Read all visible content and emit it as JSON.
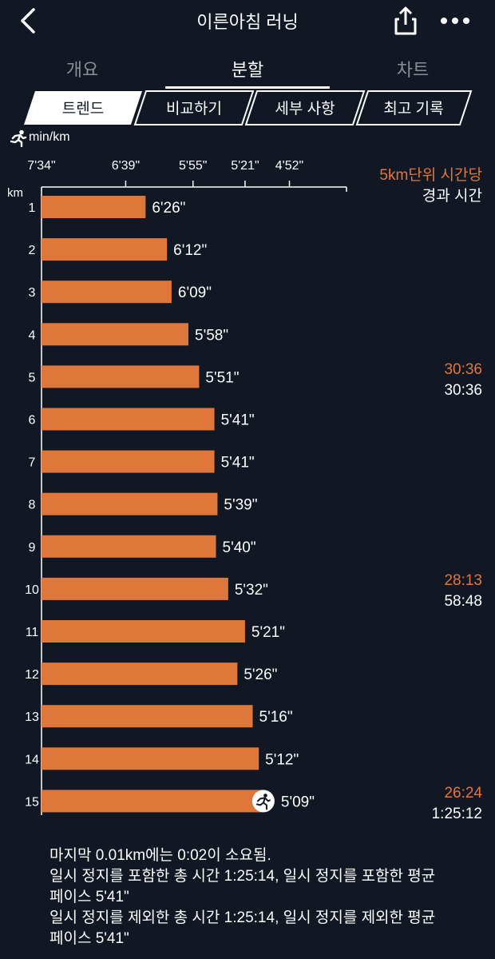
{
  "header": {
    "title": "이른아침 러닝",
    "back_icon": "chevron-left-icon",
    "share_icon": "share-icon",
    "more_icon": "more-horizontal-icon"
  },
  "tabs": [
    {
      "label": "개요",
      "active": false
    },
    {
      "label": "분할",
      "active": true
    },
    {
      "label": "차트",
      "active": false
    }
  ],
  "segments": [
    {
      "label": "트렌드",
      "active": true
    },
    {
      "label": "비교하기",
      "active": false
    },
    {
      "label": "세부 사항",
      "active": false
    },
    {
      "label": "최고 기록",
      "active": false
    }
  ],
  "unit_label": "min/km",
  "runner_icon": "runner-icon",
  "right_header": {
    "line1": "5km단위 시간당",
    "line2": "경과 시간"
  },
  "splits_5km": [
    {
      "km": 5,
      "split": "30:36",
      "elapsed": "30:36"
    },
    {
      "km": 10,
      "split": "28:13",
      "elapsed": "58:48"
    },
    {
      "km": 15,
      "split": "26:24",
      "elapsed": "1:25:12"
    }
  ],
  "colors": {
    "background": "#111723",
    "bar": "#e0773a",
    "accent": "#e3773a",
    "text": "#ffffff"
  },
  "chart_data": {
    "type": "bar",
    "orientation": "horizontal",
    "ylabel": "km",
    "xlabel": "min/km",
    "x_ticks": [
      "7'34\"",
      "6'39\"",
      "5'55\"",
      "5'21\"",
      "4'52\""
    ],
    "x_tick_paces": [
      7.5667,
      6.65,
      5.9167,
      5.35,
      4.8667
    ],
    "categories": [
      "1",
      "2",
      "3",
      "4",
      "5",
      "6",
      "7",
      "8",
      "9",
      "10",
      "11",
      "12",
      "13",
      "14",
      "15"
    ],
    "labels": [
      "6'26\"",
      "6'12\"",
      "6'09\"",
      "5'58\"",
      "5'51\"",
      "5'41\"",
      "5'41\"",
      "5'39\"",
      "5'40\"",
      "5'32\"",
      "5'21\"",
      "5'26\"",
      "5'16\"",
      "5'12\"",
      "5'09\""
    ],
    "values": [
      6.4333,
      6.2,
      6.15,
      5.9667,
      5.85,
      5.6833,
      5.6833,
      5.65,
      5.6667,
      5.5333,
      5.35,
      5.4333,
      5.2667,
      5.2,
      5.15
    ],
    "current_marker_index": 14,
    "grid": false
  },
  "footer": [
    "마지막 0.01km에는 0:02이 소요됨.",
    "일시 정지를 포함한 총 시간 1:25:14, 일시 정지를 포함한 평균",
    "페이스 5'41\"",
    "일시 정지를 제외한 총 시간 1:25:14, 일시 정지를 제외한 평균",
    "페이스 5'41\""
  ]
}
